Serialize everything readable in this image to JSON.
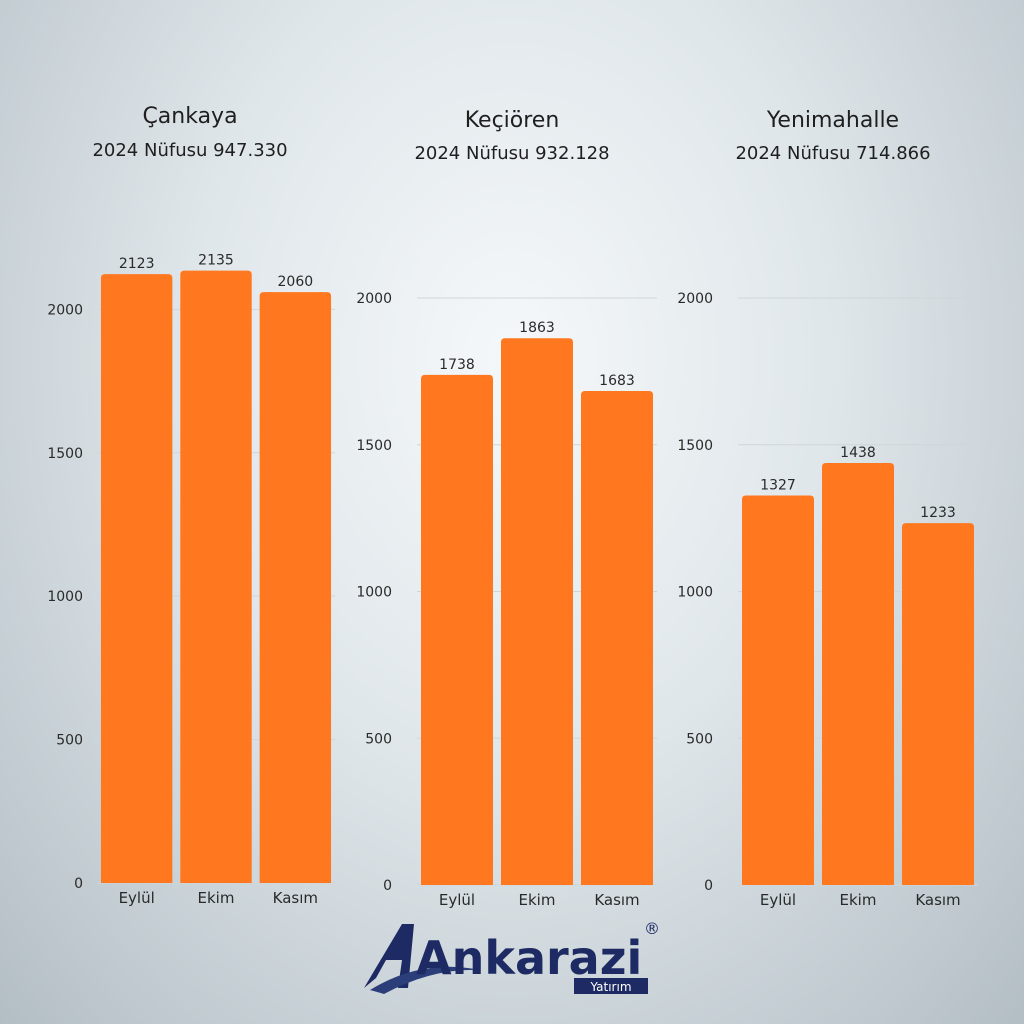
{
  "brand": {
    "name": "Ankarazi",
    "sub": "Yatırım",
    "registered_mark": "®",
    "colors": {
      "primary": "#1d2a63",
      "accent": "#ff7a1f"
    }
  },
  "colors": {
    "bar": "#ff771f"
  },
  "chart_data": [
    {
      "type": "bar",
      "title": "Çankaya",
      "subtitle": "2024 Nüfusu 947.330",
      "categories": [
        "Eylül",
        "Ekim",
        "Kasım"
      ],
      "values": [
        2123,
        2135,
        2060
      ],
      "ylim": [
        0,
        2200
      ],
      "yticks": [
        0,
        500,
        1000,
        1500,
        2000
      ],
      "grid": true,
      "xlabel": "",
      "ylabel": ""
    },
    {
      "type": "bar",
      "title": "Keçiören",
      "subtitle": "2024 Nüfusu 932.128",
      "categories": [
        "Eylül",
        "Ekim",
        "Kasım"
      ],
      "values": [
        1738,
        1863,
        1683
      ],
      "ylim": [
        0,
        2000
      ],
      "yticks": [
        0,
        500,
        1000,
        1500,
        2000
      ],
      "grid": true,
      "xlabel": "",
      "ylabel": ""
    },
    {
      "type": "bar",
      "title": "Yenimahalle",
      "subtitle": "2024 Nüfusu 714.866",
      "categories": [
        "Eylül",
        "Ekim",
        "Kasım"
      ],
      "values": [
        1327,
        1438,
        1233
      ],
      "ylim": [
        0,
        2000
      ],
      "yticks": [
        0,
        500,
        1000,
        1500,
        2000
      ],
      "grid": true,
      "xlabel": "",
      "ylabel": ""
    }
  ]
}
